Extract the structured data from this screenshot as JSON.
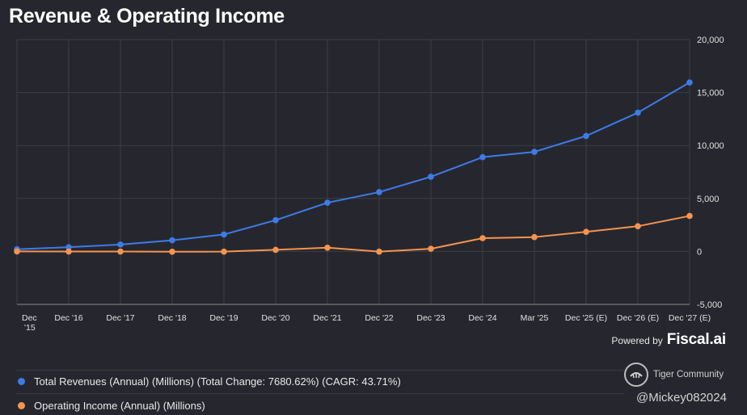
{
  "chart_data": {
    "type": "line",
    "title": "Revenue & Operating Income",
    "categories": [
      "Dec '15",
      "Dec '16",
      "Dec '17",
      "Dec '18",
      "Dec '19",
      "Dec '20",
      "Dec '21",
      "Dec '22",
      "Dec '23",
      "Dec '24",
      "Mar '25",
      "Dec '25 (E)",
      "Dec '26 (E)",
      "Dec '27 (E)"
    ],
    "series": [
      {
        "name": "Total Revenues (Annual) (Millions) (Total Change: 7680.62%) (CAGR: 43.71%)",
        "color": "#3d7be8",
        "values": [
          205,
          400,
          650,
          1050,
          1600,
          2950,
          4600,
          5600,
          7050,
          8900,
          9400,
          10900,
          13100,
          15950
        ]
      },
      {
        "name": "Operating Income (Annual) (Millions)",
        "color": "#f5944e",
        "values": [
          0,
          -10,
          -10,
          -30,
          -20,
          150,
          350,
          -20,
          250,
          1250,
          1350,
          1850,
          2380,
          3350
        ]
      }
    ],
    "y_ticks": [
      "20,000",
      "15,000",
      "10,000",
      "5,000",
      "0",
      "-5,000"
    ],
    "ylim": [
      -5000,
      20000
    ],
    "grid": true,
    "legend_position": "bottom-left"
  },
  "footer": {
    "powered_by": "Powered by",
    "brand": "Fiscal.ai"
  },
  "watermark": {
    "community": "Tiger Community",
    "handle": "@Mickey082024"
  },
  "colors": {
    "background": "#26272e",
    "grid": "#3d3e45",
    "revenue": "#3d7be8",
    "operating_income": "#f5944e"
  }
}
